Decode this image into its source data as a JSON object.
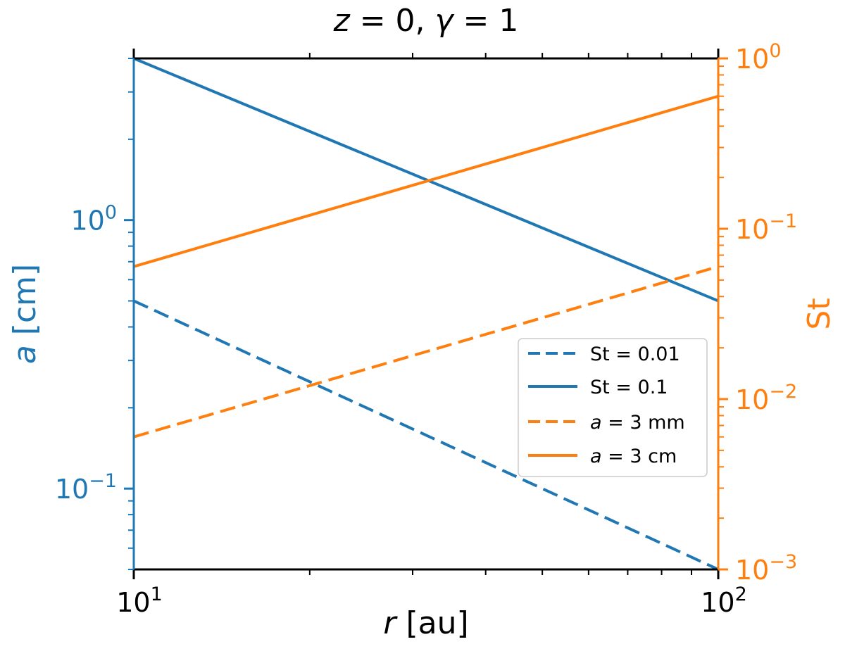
{
  "chart_data": {
    "type": "line",
    "title": "z = 0, γ = 1",
    "title_parts": {
      "var1": "z",
      "val1": " = 0, ",
      "var2": "γ",
      "val2": " = 1"
    },
    "x": {
      "label_var": "r",
      "label_unit": " [au]",
      "scale": "log",
      "range": [
        10,
        100
      ],
      "major_ticks": [
        {
          "value": 10,
          "base": "10",
          "exp": "1"
        },
        {
          "value": 100,
          "base": "10",
          "exp": "2"
        }
      ]
    },
    "y_left": {
      "label_var": "a",
      "label_unit": " [cm]",
      "scale": "log",
      "range": [
        0.05,
        4.0
      ],
      "color": "#1f77b4",
      "major_ticks": [
        {
          "value": 0.1,
          "base": "10",
          "exp": "−1"
        },
        {
          "value": 1,
          "base": "10",
          "exp": "0"
        }
      ]
    },
    "y_right": {
      "label": "St",
      "scale": "log",
      "range": [
        0.001,
        1.0
      ],
      "color": "#ff7f0e",
      "major_ticks": [
        {
          "value": 0.001,
          "base": "10",
          "exp": "−3"
        },
        {
          "value": 0.01,
          "base": "10",
          "exp": "−2"
        },
        {
          "value": 0.1,
          "base": "10",
          "exp": "−1"
        },
        {
          "value": 1,
          "base": "10",
          "exp": "0"
        }
      ]
    },
    "series": [
      {
        "name": "St = 0.01",
        "axis": "left",
        "color": "#1f77b4",
        "dash": true,
        "x": [
          10,
          100
        ],
        "y": [
          0.5,
          0.05
        ]
      },
      {
        "name": "St = 0.1",
        "axis": "left",
        "color": "#1f77b4",
        "dash": false,
        "x": [
          10,
          100
        ],
        "y": [
          4.0,
          0.5
        ]
      },
      {
        "name": "a = 3 mm",
        "axis": "right",
        "color": "#ff7f0e",
        "dash": true,
        "x": [
          10,
          100
        ],
        "y": [
          0.006,
          0.06
        ]
      },
      {
        "name": "a = 3 cm",
        "axis": "right",
        "color": "#ff7f0e",
        "dash": false,
        "x": [
          10,
          100
        ],
        "y": [
          0.06,
          0.6
        ]
      }
    ],
    "legend": {
      "position": "center-right",
      "entries": [
        {
          "pre_var": "",
          "var": "",
          "text": "St = 0.01"
        },
        {
          "pre_var": "",
          "var": "",
          "text": "St = 0.1"
        },
        {
          "pre_var": "",
          "var": "a",
          "text": " = 3 mm"
        },
        {
          "pre_var": "",
          "var": "a",
          "text": " = 3 cm"
        }
      ]
    }
  }
}
